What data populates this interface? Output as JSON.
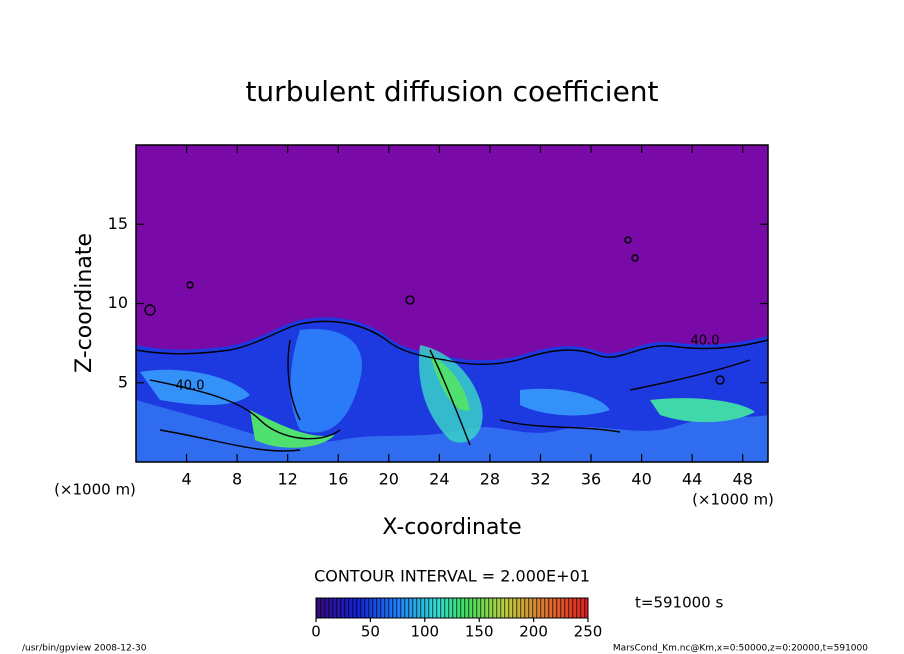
{
  "chart_data": {
    "type": "contour",
    "title": "turbulent diffusion coefficient",
    "x_label": "X-coordinate",
    "y_label": "Z-coordinate",
    "x_units": "(×1000 m)",
    "y_units": "(×1000 m)",
    "xlim": [
      0,
      50
    ],
    "xticks": [
      4,
      8,
      12,
      16,
      20,
      24,
      28,
      32,
      36,
      40,
      44,
      48
    ],
    "ylim": [
      0,
      20
    ],
    "yticks": [
      5,
      10,
      15
    ],
    "contour_labels": [
      "40.0",
      "40.0"
    ],
    "contour_interval": "CONTOUR INTERVAL = 2.000E+01",
    "time_label": "t=591000 s",
    "colorbar": {
      "lim": [
        0,
        250
      ],
      "ticks": [
        0,
        50,
        100,
        150,
        200,
        250
      ]
    },
    "footer_left": "/usr/bin/gpview   2008-12-30",
    "footer_right": "MarsCond_Km.nc@Km,x=0:50000,z=0:20000,t=591000"
  }
}
